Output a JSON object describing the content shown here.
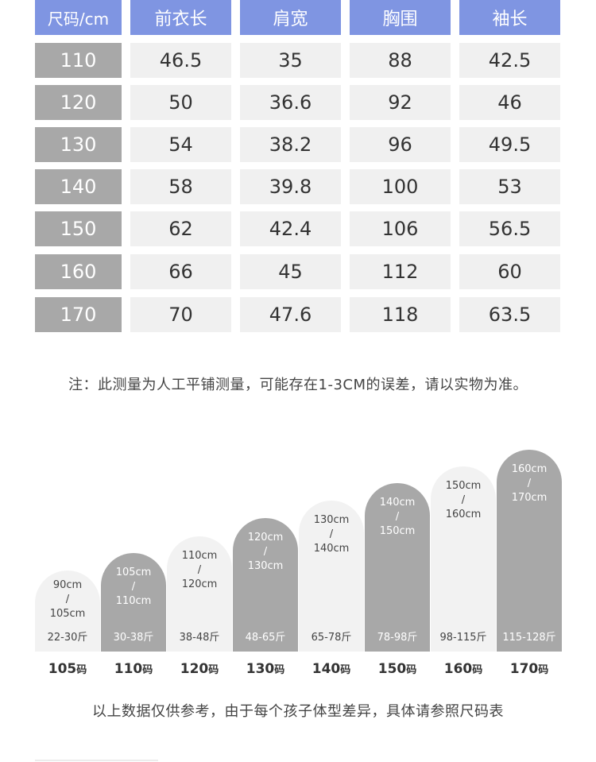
{
  "table": {
    "headers": [
      "尺码/cm",
      "前衣长",
      "肩宽",
      "胸围",
      "袖长"
    ],
    "rows": [
      [
        "110",
        "46.5",
        "35",
        "88",
        "42.5"
      ],
      [
        "120",
        "50",
        "36.6",
        "92",
        "46"
      ],
      [
        "130",
        "54",
        "38.2",
        "96",
        "49.5"
      ],
      [
        "140",
        "58",
        "39.8",
        "100",
        "53"
      ],
      [
        "150",
        "62",
        "42.4",
        "106",
        "56.5"
      ],
      [
        "160",
        "66",
        "45",
        "112",
        "60"
      ],
      [
        "170",
        "70",
        "47.6",
        "118",
        "63.5"
      ]
    ]
  },
  "note": "注：此测量为人工平铺测量，可能存在1-3CM的误差，请以实物为准。",
  "chart": {
    "columns": [
      {
        "height_lo": "90cm",
        "sep": "/",
        "height_hi": "105cm",
        "weight": "22-30斤",
        "size": "105",
        "unit": "码",
        "style": "light"
      },
      {
        "height_lo": "105cm",
        "sep": "/",
        "height_hi": "110cm",
        "weight": "30-38斤",
        "size": "110",
        "unit": "码",
        "style": "dark"
      },
      {
        "height_lo": "110cm",
        "sep": "/",
        "height_hi": "120cm",
        "weight": "38-48斤",
        "size": "120",
        "unit": "码",
        "style": "light"
      },
      {
        "height_lo": "120cm",
        "sep": "/",
        "height_hi": "130cm",
        "weight": "48-65斤",
        "size": "130",
        "unit": "码",
        "style": "dark"
      },
      {
        "height_lo": "130cm",
        "sep": "/",
        "height_hi": "140cm",
        "weight": "65-78斤",
        "size": "140",
        "unit": "码",
        "style": "light"
      },
      {
        "height_lo": "140cm",
        "sep": "/",
        "height_hi": "150cm",
        "weight": "78-98斤",
        "size": "150",
        "unit": "码",
        "style": "dark"
      },
      {
        "height_lo": "150cm",
        "sep": "/",
        "height_hi": "160cm",
        "weight": "98-115斤",
        "size": "160",
        "unit": "码",
        "style": "light"
      },
      {
        "height_lo": "160cm",
        "sep": "/",
        "height_hi": "170cm",
        "weight": "115-128斤",
        "size": "170",
        "unit": "码",
        "style": "dark"
      }
    ]
  },
  "footer": "以上数据仅供参考，由于每个孩子体型差异，具体请参照尺码表",
  "colors": {
    "header_blue": "#7f95e2",
    "size_gray": "#a8a8a8",
    "cell_light": "#f0f0f0"
  }
}
